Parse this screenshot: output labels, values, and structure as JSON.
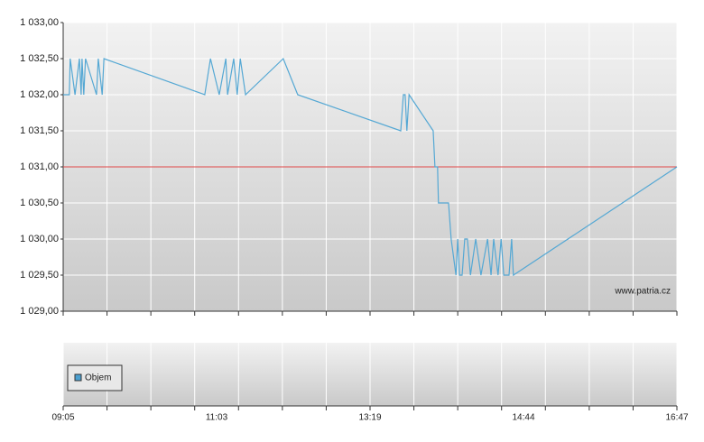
{
  "chart_data": {
    "type": "line",
    "xlim": [
      0,
      14
    ],
    "xticks": [
      {
        "value": 0,
        "label": "09:05"
      },
      {
        "value": 3.5,
        "label": "11:03"
      },
      {
        "value": 7,
        "label": "13:19"
      },
      {
        "value": 10.5,
        "label": "14:44"
      },
      {
        "value": 14,
        "label": "16:47"
      }
    ],
    "ylim": [
      1029,
      1033
    ],
    "yticks": [
      {
        "value": 1029,
        "label": "1 029,00"
      },
      {
        "value": 1029.5,
        "label": "1 029,50"
      },
      {
        "value": 1030,
        "label": "1 030,00"
      },
      {
        "value": 1030.5,
        "label": "1 030,50"
      },
      {
        "value": 1031,
        "label": "1 031,00"
      },
      {
        "value": 1031.5,
        "label": "1 031,50"
      },
      {
        "value": 1032,
        "label": "1 032,00"
      },
      {
        "value": 1032.5,
        "label": "1 032,50"
      },
      {
        "value": 1033,
        "label": "1 033,00"
      }
    ],
    "grid": true,
    "reference_line": {
      "value": 1031,
      "color": "#e04848"
    },
    "watermark": "www.patria.cz",
    "volume_legend": {
      "name": "Objem",
      "color": "#4a9fd0"
    },
    "series": [
      {
        "color": "#55a8d4",
        "x": [
          0,
          0.14,
          0.16,
          0.27,
          0.37,
          0.41,
          0.43,
          0.47,
          0.51,
          0.76,
          0.8,
          0.89,
          0.93,
          3.23,
          3.36,
          3.56,
          3.71,
          3.75,
          3.89,
          3.97,
          4.04,
          4.16,
          5.02,
          5.35,
          7.7,
          7.76,
          7.8,
          7.84,
          7.89,
          8.44,
          8.48,
          8.54,
          8.56,
          8.79,
          8.85,
          8.96,
          9,
          9.04,
          9.1,
          9.16,
          9.22,
          9.29,
          9.41,
          9.53,
          9.68,
          9.76,
          9.82,
          9.92,
          9.99,
          10.05,
          10.17,
          10.23,
          10.27,
          14
        ],
        "values": [
          1032,
          1032,
          1032.5,
          1032,
          1032.5,
          1032,
          1032.5,
          1032,
          1032.5,
          1032,
          1032.5,
          1032,
          1032.5,
          1032,
          1032.5,
          1032,
          1032.5,
          1032,
          1032.5,
          1032,
          1032.5,
          1032,
          1032.5,
          1032,
          1031.5,
          1032,
          1032,
          1031.5,
          1032,
          1031.5,
          1031,
          1031,
          1030.5,
          1030.5,
          1030,
          1029.5,
          1030,
          1029.5,
          1029.5,
          1030,
          1030,
          1029.5,
          1030,
          1029.5,
          1030,
          1029.5,
          1030,
          1029.5,
          1030,
          1029.5,
          1029.5,
          1030,
          1029.5,
          1031
        ]
      }
    ]
  }
}
